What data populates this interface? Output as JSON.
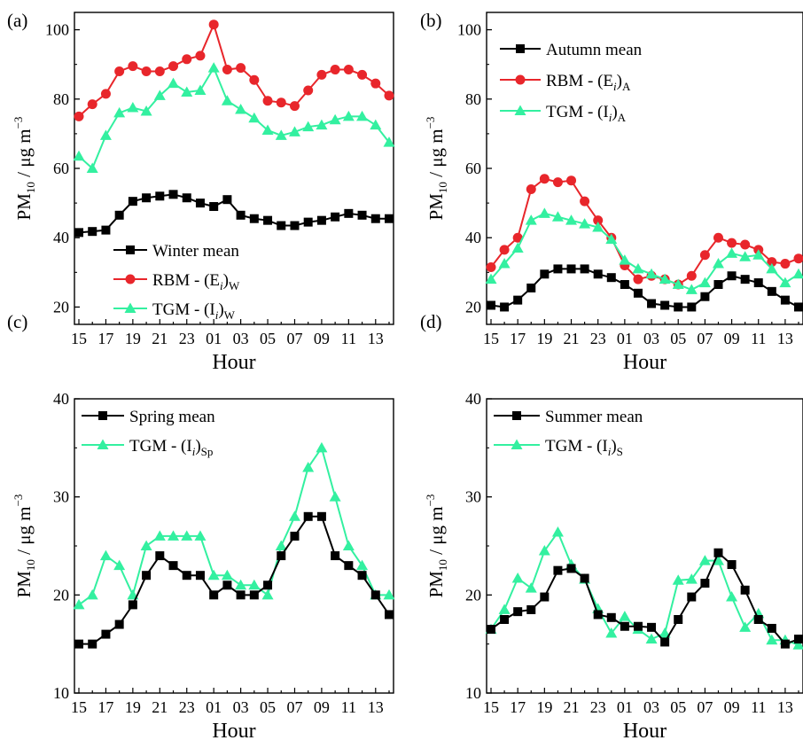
{
  "chart_data": [
    {
      "type": "line",
      "panel_label": "(a)",
      "xlabel": "Hour",
      "ylabel": "PM10 / μg m−3",
      "ylim": [
        15,
        105
      ],
      "yticks": [
        20,
        40,
        60,
        80,
        100
      ],
      "x": [
        "15",
        "16",
        "17",
        "18",
        "19",
        "20",
        "21",
        "22",
        "23",
        "00",
        "01",
        "02",
        "03",
        "04",
        "05",
        "06",
        "07",
        "08",
        "09",
        "10",
        "11",
        "12",
        "13",
        "14"
      ],
      "xtick_labels": [
        "15",
        "17",
        "19",
        "21",
        "23",
        "01",
        "03",
        "05",
        "07",
        "09",
        "11",
        "13"
      ],
      "legend_position": "bottom-center",
      "series": [
        {
          "name": "Winter mean",
          "color": "#000000",
          "marker": "square",
          "values": [
            41.5,
            41.8,
            42.2,
            46.5,
            50.5,
            51.5,
            52,
            52.5,
            51.5,
            50,
            49,
            51,
            46.5,
            45.5,
            45,
            43.5,
            43.5,
            44.5,
            45,
            46,
            47,
            46.5,
            45.5,
            45.5
          ]
        },
        {
          "name": "RBM - (Ei)W",
          "legend_main": "RBM - (E",
          "legend_sub_mid": "i",
          "legend_paren": ")",
          "legend_sub_end": "W",
          "color": "#e8262b",
          "marker": "circle",
          "values": [
            75,
            78.5,
            81.5,
            88,
            89.5,
            88,
            88,
            89.5,
            91.5,
            92.5,
            101.5,
            88.5,
            89,
            85.5,
            79.5,
            79,
            78,
            82.5,
            87,
            88.5,
            88.5,
            87,
            84.5,
            81
          ]
        },
        {
          "name": "TGM - (Ii)W",
          "legend_main": "TGM - (I",
          "legend_sub_mid": "i",
          "legend_paren": ")",
          "legend_sub_end": "W",
          "color": "#33f0a0",
          "marker": "triangle",
          "values": [
            63.5,
            60,
            69.5,
            76,
            77.5,
            76.5,
            81,
            84.5,
            82,
            82.5,
            89,
            79.5,
            77,
            74.5,
            71,
            69.5,
            70.5,
            72,
            72.5,
            74,
            75,
            75,
            72.5,
            67.5
          ]
        }
      ]
    },
    {
      "type": "line",
      "panel_label": "(b)",
      "xlabel": "Hour",
      "ylabel": "PM10 / μg m−3",
      "ylim": [
        15,
        105
      ],
      "yticks": [
        20,
        40,
        60,
        80,
        100
      ],
      "x": [
        "15",
        "16",
        "17",
        "18",
        "19",
        "20",
        "21",
        "22",
        "23",
        "00",
        "01",
        "02",
        "03",
        "04",
        "05",
        "06",
        "07",
        "08",
        "09",
        "10",
        "11",
        "12",
        "13",
        "14"
      ],
      "xtick_labels": [
        "15",
        "17",
        "19",
        "21",
        "23",
        "01",
        "03",
        "05",
        "07",
        "09",
        "11",
        "13"
      ],
      "legend_position": "top-left",
      "series": [
        {
          "name": "Autumn mean",
          "color": "#000000",
          "marker": "square",
          "values": [
            20.5,
            20,
            22,
            25.5,
            29.5,
            31,
            31,
            31,
            29.5,
            28.5,
            26.5,
            24,
            21,
            20.5,
            20,
            20,
            23,
            26.5,
            29,
            28,
            27,
            24.5,
            22,
            20
          ]
        },
        {
          "name": "RBM - (Ei)A",
          "legend_main": "RBM - (E",
          "legend_sub_mid": "i",
          "legend_paren": ")",
          "legend_sub_end": "A",
          "color": "#e8262b",
          "marker": "circle",
          "values": [
            31.5,
            36.5,
            40,
            54,
            57,
            56,
            56.5,
            50.5,
            45,
            40,
            32,
            28,
            29,
            28,
            26.5,
            29,
            35,
            40,
            38.5,
            38,
            36.5,
            33,
            32.5,
            34
          ]
        },
        {
          "name": "TGM - (Ii)A",
          "legend_main": "TGM - (I",
          "legend_sub_mid": "i",
          "legend_paren": ")",
          "legend_sub_end": "A",
          "color": "#33f0a0",
          "marker": "triangle",
          "values": [
            28,
            32.5,
            37,
            45,
            47,
            46,
            45,
            44,
            43,
            39.5,
            33.5,
            31,
            29.5,
            28,
            26.5,
            25,
            27,
            32.5,
            35.5,
            34.5,
            35,
            31,
            27,
            29.5
          ]
        }
      ]
    },
    {
      "type": "line",
      "panel_label": "(c)",
      "xlabel": "Hour",
      "ylabel": "PM10 / μg m−3",
      "ylim": [
        10,
        40
      ],
      "yticks": [
        10,
        20,
        30,
        40
      ],
      "x": [
        "15",
        "16",
        "17",
        "18",
        "19",
        "20",
        "21",
        "22",
        "23",
        "00",
        "01",
        "02",
        "03",
        "04",
        "05",
        "06",
        "07",
        "08",
        "09",
        "10",
        "11",
        "12",
        "13",
        "14"
      ],
      "xtick_labels": [
        "15",
        "17",
        "19",
        "21",
        "23",
        "01",
        "03",
        "05",
        "07",
        "09",
        "11",
        "13"
      ],
      "legend_position": "top-left",
      "series": [
        {
          "name": "Spring mean",
          "color": "#000000",
          "marker": "square",
          "values": [
            15,
            15,
            16,
            17,
            19,
            22,
            24,
            23,
            22,
            22,
            20,
            21,
            20,
            20,
            21,
            24,
            26,
            28,
            28,
            24,
            23,
            22,
            20,
            18
          ]
        },
        {
          "name": "TGM - (Ii)Sp",
          "legend_main": "TGM - (I",
          "legend_sub_mid": "i",
          "legend_paren": ")",
          "legend_sub_end": "Sp",
          "color": "#33f0a0",
          "marker": "triangle",
          "values": [
            19,
            20,
            24,
            23,
            20,
            25,
            26,
            26,
            26,
            26,
            22,
            22,
            21,
            21,
            20,
            25,
            28,
            33,
            35,
            30,
            25,
            23,
            20,
            20
          ]
        }
      ]
    },
    {
      "type": "line",
      "panel_label": "(d)",
      "xlabel": "Hour",
      "ylabel": "PM10 / μg m−3",
      "ylim": [
        10,
        40
      ],
      "yticks": [
        10,
        20,
        30,
        40
      ],
      "x": [
        "15",
        "16",
        "17",
        "18",
        "19",
        "20",
        "21",
        "22",
        "23",
        "00",
        "01",
        "02",
        "03",
        "04",
        "05",
        "06",
        "07",
        "08",
        "09",
        "10",
        "11",
        "12",
        "13",
        "14"
      ],
      "xtick_labels": [
        "15",
        "17",
        "19",
        "21",
        "23",
        "01",
        "03",
        "05",
        "07",
        "09",
        "11",
        "13"
      ],
      "legend_position": "top-left",
      "series": [
        {
          "name": "Summer mean",
          "color": "#000000",
          "marker": "square",
          "values": [
            16.5,
            17.5,
            18.3,
            18.5,
            19.8,
            22.5,
            22.7,
            21.7,
            18,
            17.7,
            16.8,
            16.8,
            16.7,
            15.2,
            17.5,
            19.8,
            21.2,
            24.3,
            23.1,
            20.5,
            17.5,
            16.6,
            15,
            15.5
          ]
        },
        {
          "name": "TGM - (Ii)S",
          "legend_main": "TGM - (I",
          "legend_sub_mid": "i",
          "legend_paren": ")",
          "legend_sub_end": "S",
          "color": "#33f0a0",
          "marker": "triangle",
          "values": [
            16.5,
            18.5,
            21.7,
            20.7,
            24.5,
            26.4,
            23.1,
            21.6,
            18.6,
            16.1,
            17.8,
            16.5,
            15.5,
            16.1,
            21.5,
            21.6,
            23.5,
            23.5,
            19.8,
            16.7,
            18.1,
            15.4,
            15.4,
            14.9
          ]
        }
      ]
    }
  ]
}
